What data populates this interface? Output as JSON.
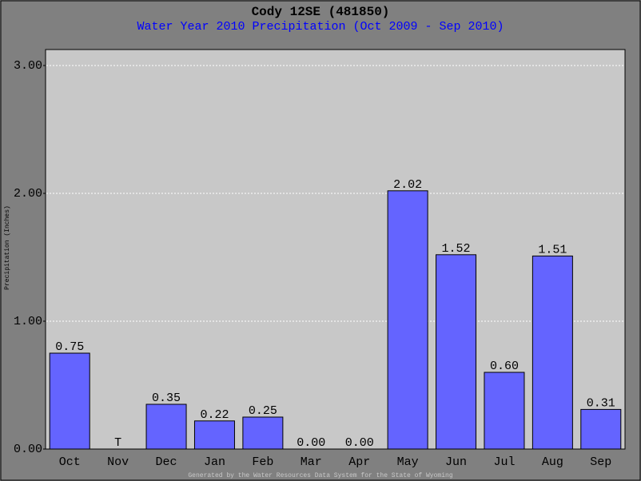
{
  "chart_data": {
    "type": "bar",
    "title": "Cody 12SE (481850)",
    "subtitle": "Water Year 2010 Precipitation (Oct 2009 - Sep 2010)",
    "y_label": "Precipitation (Inches)",
    "footer": "Generated by the Water Resources Data System for the State of Wyoming",
    "categories": [
      "Oct",
      "Nov",
      "Dec",
      "Jan",
      "Feb",
      "Mar",
      "Apr",
      "May",
      "Jun",
      "Jul",
      "Aug",
      "Sep"
    ],
    "values": [
      0.75,
      null,
      0.35,
      0.22,
      0.25,
      0,
      0,
      2.02,
      1.52,
      0.6,
      1.51,
      0.31
    ],
    "value_labels": [
      "0.75",
      "T",
      "0.35",
      "0.22",
      "0.25",
      "0.00",
      "0.00",
      "2.02",
      "1.52",
      "0.60",
      "1.51",
      "0.31"
    ],
    "color": "#6464ff",
    "ylim": [
      0,
      3.125
    ],
    "yticks": [
      {
        "value": 0,
        "label": "0.00"
      },
      {
        "value": 1,
        "label": "1.00"
      },
      {
        "value": 2,
        "label": "2.00"
      },
      {
        "value": 3,
        "label": "3.00"
      }
    ],
    "grid": true
  }
}
